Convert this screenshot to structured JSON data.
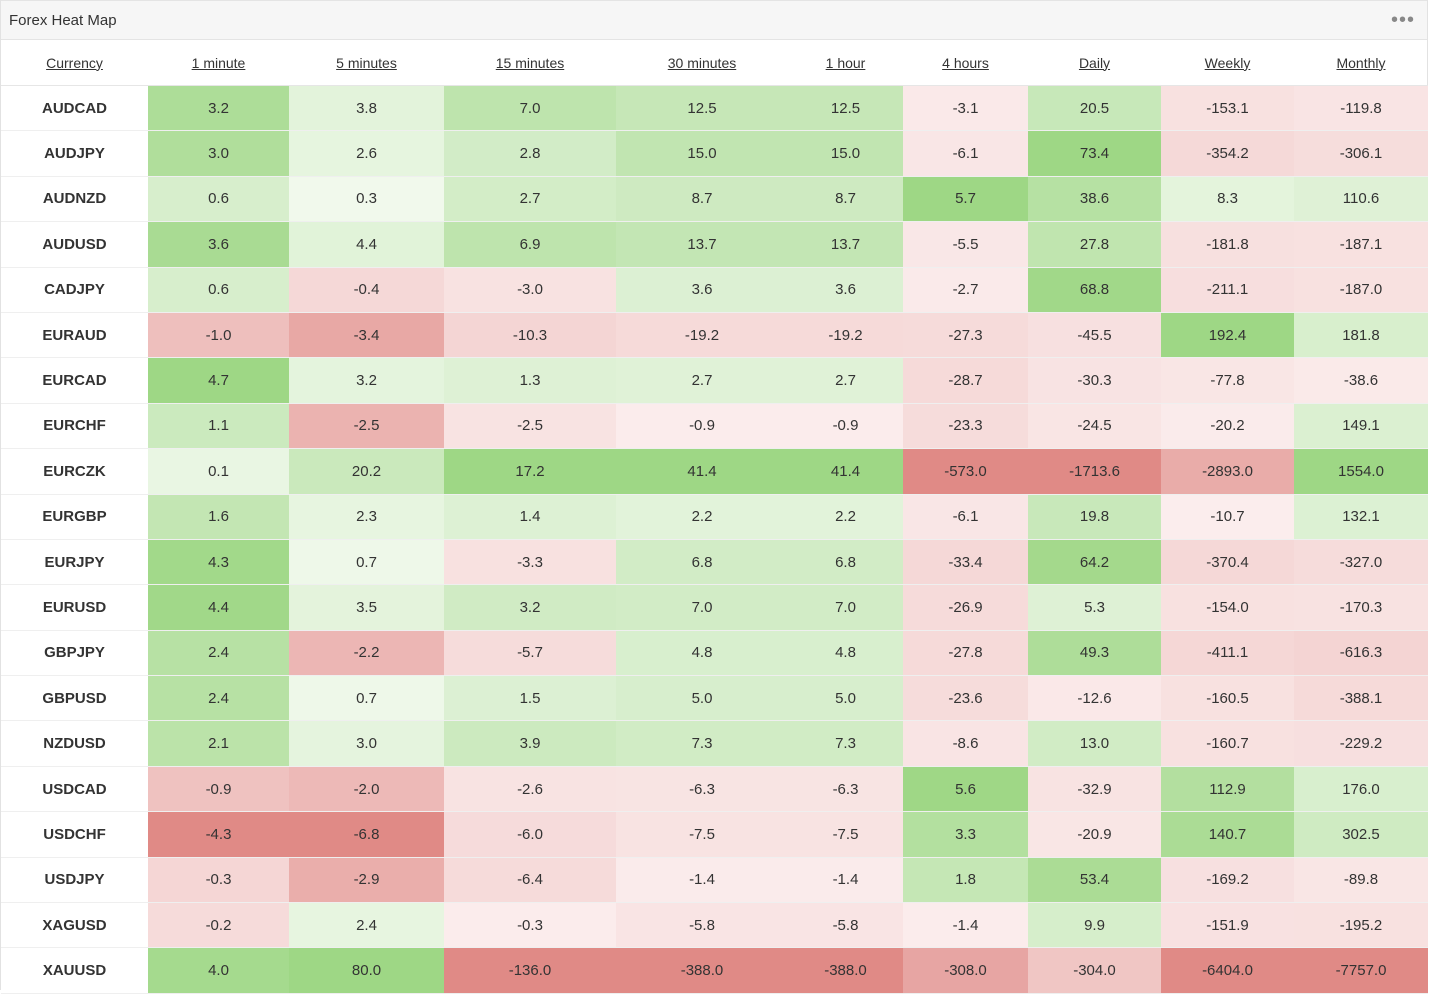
{
  "widget": {
    "title": "Forex Heat Map",
    "menu_icon": "more-horizontal-icon"
  },
  "columns": [
    "Currency",
    "1 minute",
    "5 minutes",
    "15 minutes",
    "30 minutes",
    "1 hour",
    "4 hours",
    "Daily",
    "Weekly",
    "Monthly"
  ],
  "rows": [
    {
      "currency": "AUDCAD",
      "values": [
        "3.2",
        "3.8",
        "7.0",
        "12.5",
        "12.5",
        "-3.1",
        "20.5",
        "-153.1",
        "-119.8"
      ]
    },
    {
      "currency": "AUDJPY",
      "values": [
        "3.0",
        "2.6",
        "2.8",
        "15.0",
        "15.0",
        "-6.1",
        "73.4",
        "-354.2",
        "-306.1"
      ]
    },
    {
      "currency": "AUDNZD",
      "values": [
        "0.6",
        "0.3",
        "2.7",
        "8.7",
        "8.7",
        "5.7",
        "38.6",
        "8.3",
        "110.6"
      ]
    },
    {
      "currency": "AUDUSD",
      "values": [
        "3.6",
        "4.4",
        "6.9",
        "13.7",
        "13.7",
        "-5.5",
        "27.8",
        "-181.8",
        "-187.1"
      ]
    },
    {
      "currency": "CADJPY",
      "values": [
        "0.6",
        "-0.4",
        "-3.0",
        "3.6",
        "3.6",
        "-2.7",
        "68.8",
        "-211.1",
        "-187.0"
      ]
    },
    {
      "currency": "EURAUD",
      "values": [
        "-1.0",
        "-3.4",
        "-10.3",
        "-19.2",
        "-19.2",
        "-27.3",
        "-45.5",
        "192.4",
        "181.8"
      ]
    },
    {
      "currency": "EURCAD",
      "values": [
        "4.7",
        "3.2",
        "1.3",
        "2.7",
        "2.7",
        "-28.7",
        "-30.3",
        "-77.8",
        "-38.6"
      ]
    },
    {
      "currency": "EURCHF",
      "values": [
        "1.1",
        "-2.5",
        "-2.5",
        "-0.9",
        "-0.9",
        "-23.3",
        "-24.5",
        "-20.2",
        "149.1"
      ]
    },
    {
      "currency": "EURCZK",
      "values": [
        "0.1",
        "20.2",
        "17.2",
        "41.4",
        "41.4",
        "-573.0",
        "-1713.6",
        "-2893.0",
        "1554.0"
      ]
    },
    {
      "currency": "EURGBP",
      "values": [
        "1.6",
        "2.3",
        "1.4",
        "2.2",
        "2.2",
        "-6.1",
        "19.8",
        "-10.7",
        "132.1"
      ]
    },
    {
      "currency": "EURJPY",
      "values": [
        "4.3",
        "0.7",
        "-3.3",
        "6.8",
        "6.8",
        "-33.4",
        "64.2",
        "-370.4",
        "-327.0"
      ]
    },
    {
      "currency": "EURUSD",
      "values": [
        "4.4",
        "3.5",
        "3.2",
        "7.0",
        "7.0",
        "-26.9",
        "5.3",
        "-154.0",
        "-170.3"
      ]
    },
    {
      "currency": "GBPJPY",
      "values": [
        "2.4",
        "-2.2",
        "-5.7",
        "4.8",
        "4.8",
        "-27.8",
        "49.3",
        "-411.1",
        "-616.3"
      ]
    },
    {
      "currency": "GBPUSD",
      "values": [
        "2.4",
        "0.7",
        "1.5",
        "5.0",
        "5.0",
        "-23.6",
        "-12.6",
        "-160.5",
        "-388.1"
      ]
    },
    {
      "currency": "NZDUSD",
      "values": [
        "2.1",
        "3.0",
        "3.9",
        "7.3",
        "7.3",
        "-8.6",
        "13.0",
        "-160.7",
        "-229.2"
      ]
    },
    {
      "currency": "USDCAD",
      "values": [
        "-0.9",
        "-2.0",
        "-2.6",
        "-6.3",
        "-6.3",
        "5.6",
        "-32.9",
        "112.9",
        "176.0"
      ]
    },
    {
      "currency": "USDCHF",
      "values": [
        "-4.3",
        "-6.8",
        "-6.0",
        "-7.5",
        "-7.5",
        "3.3",
        "-20.9",
        "140.7",
        "302.5"
      ]
    },
    {
      "currency": "USDJPY",
      "values": [
        "-0.3",
        "-2.9",
        "-6.4",
        "-1.4",
        "-1.4",
        "1.8",
        "53.4",
        "-169.2",
        "-89.8"
      ]
    },
    {
      "currency": "XAGUSD",
      "values": [
        "-0.2",
        "2.4",
        "-0.3",
        "-5.8",
        "-5.8",
        "-1.4",
        "9.9",
        "-151.9",
        "-195.2"
      ]
    },
    {
      "currency": "XAUUSD",
      "values": [
        "4.0",
        "80.0",
        "-136.0",
        "-388.0",
        "-388.0",
        "-308.0",
        "-304.0",
        "-6404.0",
        "-7757.0"
      ]
    }
  ],
  "colors": {
    "positive_max": "#9ed785",
    "positive_min": "#f6fbf3",
    "negative_max": "#e08a86",
    "negative_min": "#fcf1f1"
  }
}
